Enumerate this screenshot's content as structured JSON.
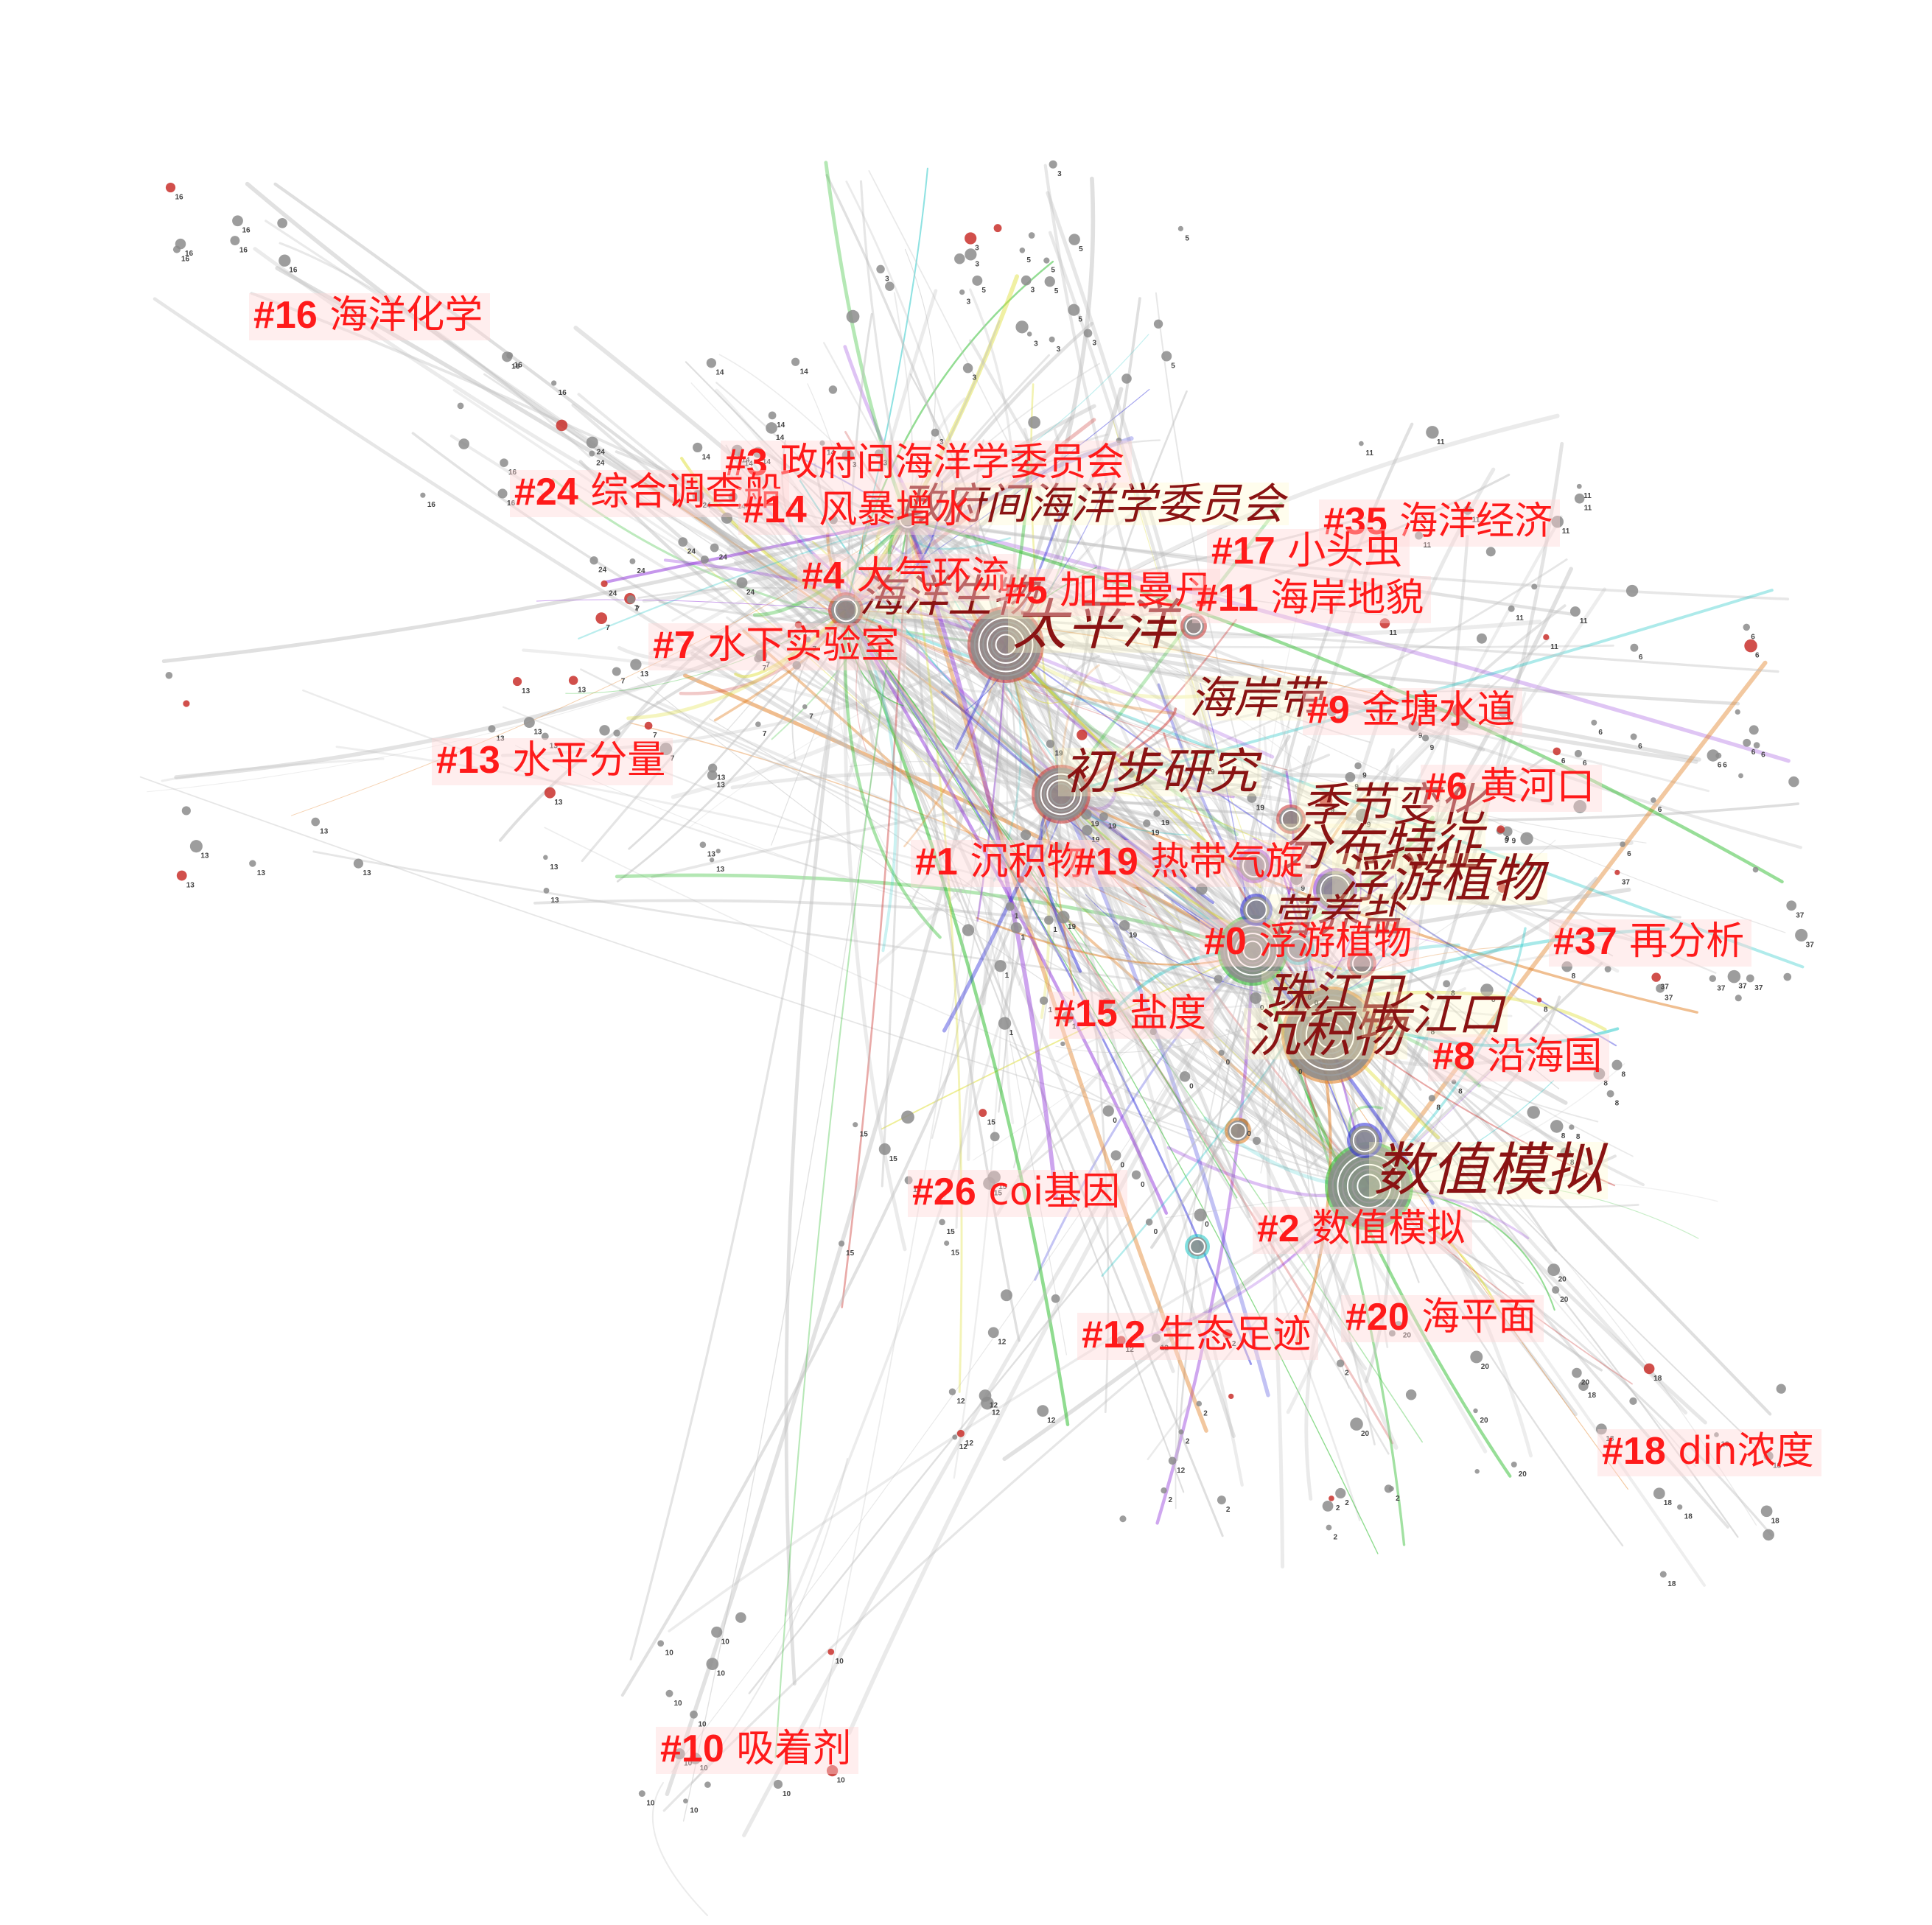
{
  "colors": {
    "cluster_label": "#ff1a1a",
    "keyword_label": "#8a1313",
    "edge_grey": "#bdbdbd",
    "node_grey": "#8c8c8c",
    "node_red": "#c9302c",
    "node_blue": "#2a2ad8",
    "node_green": "#1fb81f",
    "node_cyan": "#19c4c4",
    "node_orange": "#e07a1a",
    "node_purple": "#8a2ad8",
    "node_yellow": "#dcdc28"
  },
  "cluster_labels": [
    {
      "id": "c16",
      "num": "#16",
      "text": "海洋化学"
    },
    {
      "id": "c3",
      "num": "#3",
      "text": "政府间海洋学委员会"
    },
    {
      "id": "c24",
      "num": "#24",
      "text": "综合调查船"
    },
    {
      "id": "c14",
      "num": "#14",
      "text": "风暴增水"
    },
    {
      "id": "c35",
      "num": "#35",
      "text": "海洋经济"
    },
    {
      "id": "c17",
      "num": "#17",
      "text": "小头虫"
    },
    {
      "id": "c4",
      "num": "#4",
      "text": "大气环流"
    },
    {
      "id": "c5",
      "num": "#5",
      "text": "加里曼丹"
    },
    {
      "id": "c11",
      "num": "#11",
      "text": "海岸地貌"
    },
    {
      "id": "c7",
      "num": "#7",
      "text": "水下实验室"
    },
    {
      "id": "c9",
      "num": "#9",
      "text": "金塘水道"
    },
    {
      "id": "c13",
      "num": "#13",
      "text": "水平分量"
    },
    {
      "id": "c6",
      "num": "#6",
      "text": "黄河口"
    },
    {
      "id": "c1",
      "num": "#1",
      "text": "沉积物"
    },
    {
      "id": "c19",
      "num": "#19",
      "text": "热带气旋"
    },
    {
      "id": "c0",
      "num": "#0",
      "text": "浮游植物"
    },
    {
      "id": "c37",
      "num": "#37",
      "text": "再分析"
    },
    {
      "id": "c15",
      "num": "#15",
      "text": "盐度"
    },
    {
      "id": "c8",
      "num": "#8",
      "text": "沿海国"
    },
    {
      "id": "c26",
      "num": "#26",
      "text": "coi基因"
    },
    {
      "id": "c2",
      "num": "#2",
      "text": "数值模拟"
    },
    {
      "id": "c12",
      "num": "#12",
      "text": "生态足迹"
    },
    {
      "id": "c20",
      "num": "#20",
      "text": "海平面"
    },
    {
      "id": "c18",
      "num": "#18",
      "text": "din浓度"
    },
    {
      "id": "c10",
      "num": "#10",
      "text": "吸着剂"
    }
  ],
  "keyword_labels": [
    {
      "id": "k_ioc",
      "text": "政府间海洋学委员会"
    },
    {
      "id": "k_mb",
      "text": "海洋生物"
    },
    {
      "id": "k_pac",
      "text": "太平洋"
    },
    {
      "id": "k_cz",
      "text": "海岸带"
    },
    {
      "id": "k_ps",
      "text": "初步研究"
    },
    {
      "id": "k_sc",
      "text": "季节变化"
    },
    {
      "id": "k_df",
      "text": "分布特征"
    },
    {
      "id": "k_phy",
      "text": "浮游植物"
    },
    {
      "id": "k_nut",
      "text": "营养盐"
    },
    {
      "id": "k_prd",
      "text": "珠江口"
    },
    {
      "id": "k_sed",
      "text": "沉积物"
    },
    {
      "id": "k_est",
      "text": "长江口"
    },
    {
      "id": "k_num",
      "text": "数值模拟"
    }
  ]
}
